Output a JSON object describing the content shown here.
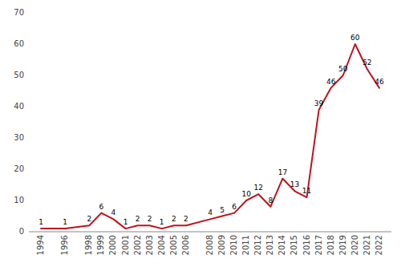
{
  "chart_data": {
    "type": "line",
    "x": [
      1994,
      1996,
      1998,
      1999,
      2000,
      2001,
      2002,
      2003,
      2004,
      2005,
      2006,
      2008,
      2009,
      2010,
      2011,
      2012,
      2013,
      2014,
      2015,
      2016,
      2017,
      2018,
      2019,
      2020,
      2021,
      2022
    ],
    "values": [
      1,
      1,
      2,
      6,
      4,
      1,
      2,
      2,
      1,
      2,
      2,
      4,
      5,
      6,
      10,
      12,
      8,
      17,
      13,
      11,
      39,
      46,
      50,
      60,
      52,
      46
    ],
    "color": "#c0121c",
    "xlim": [
      1993,
      2023
    ],
    "xticks": [
      1994,
      1996,
      1998,
      1999,
      2000,
      2001,
      2002,
      2003,
      2004,
      2005,
      2006,
      2008,
      2009,
      2010,
      2011,
      2012,
      2013,
      2014,
      2015,
      2016,
      2017,
      2018,
      2019,
      2020,
      2021,
      2022
    ],
    "ylim": [
      0,
      70
    ],
    "yticks": [
      0,
      10,
      20,
      30,
      40,
      50,
      60,
      70
    ],
    "grid": false,
    "data_labels": true
  }
}
